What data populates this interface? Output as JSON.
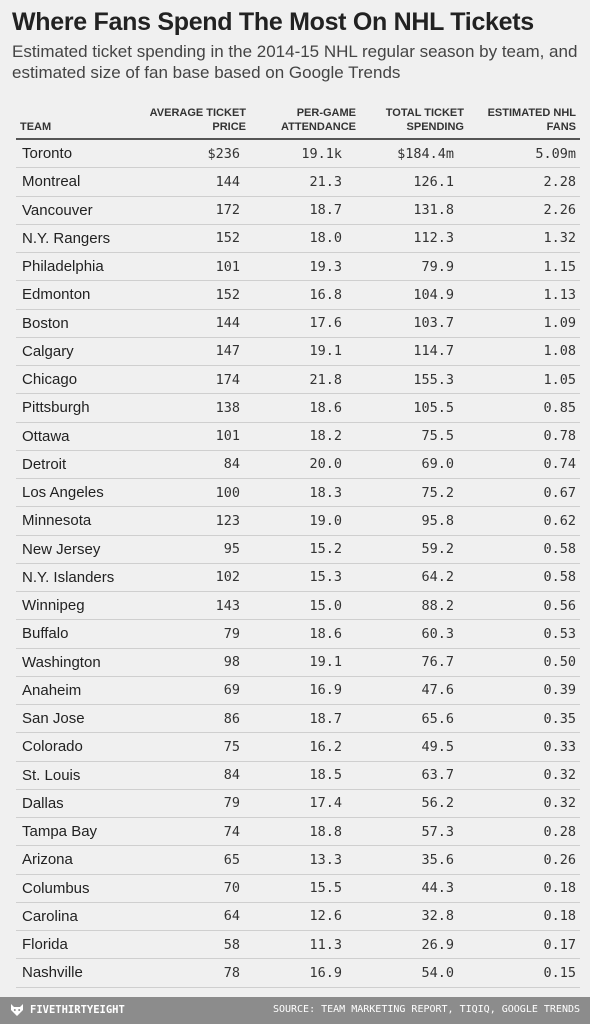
{
  "title": "Where Fans Spend The Most On NHL Tickets",
  "subtitle": "Estimated ticket spending in the 2014-15 NHL regular season by team, and estimated size of fan base based on Google Trends",
  "columns": {
    "team": "TEAM",
    "price": "AVERAGE TICKET PRICE",
    "attendance": "PER-GAME ATTENDANCE",
    "spending": "TOTAL TICKET SPENDING",
    "fans": "ESTIMATED NHL FANS"
  },
  "chart_data": {
    "type": "table",
    "columns": [
      "TEAM",
      "AVERAGE TICKET PRICE",
      "PER-GAME ATTENDANCE",
      "TOTAL TICKET SPENDING",
      "ESTIMATED NHL FANS"
    ],
    "rows": [
      [
        "Toronto",
        "$236",
        "19.1k",
        "$184.4m",
        "5.09m"
      ],
      [
        "Montreal",
        "144",
        "21.3",
        "126.1",
        "2.28"
      ],
      [
        "Vancouver",
        "172",
        "18.7",
        "131.8",
        "2.26"
      ],
      [
        "N.Y. Rangers",
        "152",
        "18.0",
        "112.3",
        "1.32"
      ],
      [
        "Philadelphia",
        "101",
        "19.3",
        "79.9",
        "1.15"
      ],
      [
        "Edmonton",
        "152",
        "16.8",
        "104.9",
        "1.13"
      ],
      [
        "Boston",
        "144",
        "17.6",
        "103.7",
        "1.09"
      ],
      [
        "Calgary",
        "147",
        "19.1",
        "114.7",
        "1.08"
      ],
      [
        "Chicago",
        "174",
        "21.8",
        "155.3",
        "1.05"
      ],
      [
        "Pittsburgh",
        "138",
        "18.6",
        "105.5",
        "0.85"
      ],
      [
        "Ottawa",
        "101",
        "18.2",
        "75.5",
        "0.78"
      ],
      [
        "Detroit",
        "84",
        "20.0",
        "69.0",
        "0.74"
      ],
      [
        "Los Angeles",
        "100",
        "18.3",
        "75.2",
        "0.67"
      ],
      [
        "Minnesota",
        "123",
        "19.0",
        "95.8",
        "0.62"
      ],
      [
        "New Jersey",
        "95",
        "15.2",
        "59.2",
        "0.58"
      ],
      [
        "N.Y. Islanders",
        "102",
        "15.3",
        "64.2",
        "0.58"
      ],
      [
        "Winnipeg",
        "143",
        "15.0",
        "88.2",
        "0.56"
      ],
      [
        "Buffalo",
        "79",
        "18.6",
        "60.3",
        "0.53"
      ],
      [
        "Washington",
        "98",
        "19.1",
        "76.7",
        "0.50"
      ],
      [
        "Anaheim",
        "69",
        "16.9",
        "47.6",
        "0.39"
      ],
      [
        "San Jose",
        "86",
        "18.7",
        "65.6",
        "0.35"
      ],
      [
        "Colorado",
        "75",
        "16.2",
        "49.5",
        "0.33"
      ],
      [
        "St. Louis",
        "84",
        "18.5",
        "63.7",
        "0.32"
      ],
      [
        "Dallas",
        "79",
        "17.4",
        "56.2",
        "0.32"
      ],
      [
        "Tampa Bay",
        "74",
        "18.8",
        "57.3",
        "0.28"
      ],
      [
        "Arizona",
        "65",
        "13.3",
        "35.6",
        "0.26"
      ],
      [
        "Columbus",
        "70",
        "15.5",
        "44.3",
        "0.18"
      ],
      [
        "Carolina",
        "64",
        "12.6",
        "32.8",
        "0.18"
      ],
      [
        "Florida",
        "58",
        "11.3",
        "26.9",
        "0.17"
      ],
      [
        "Nashville",
        "78",
        "16.9",
        "54.0",
        "0.15"
      ]
    ]
  },
  "footer": {
    "brand": "FIVETHIRTYEIGHT",
    "brand_icon": "fox-logo-icon",
    "source": "SOURCE: TEAM MARKETING REPORT, TIQIQ, GOOGLE TRENDS",
    "bar_color": "#8c8c8c"
  }
}
